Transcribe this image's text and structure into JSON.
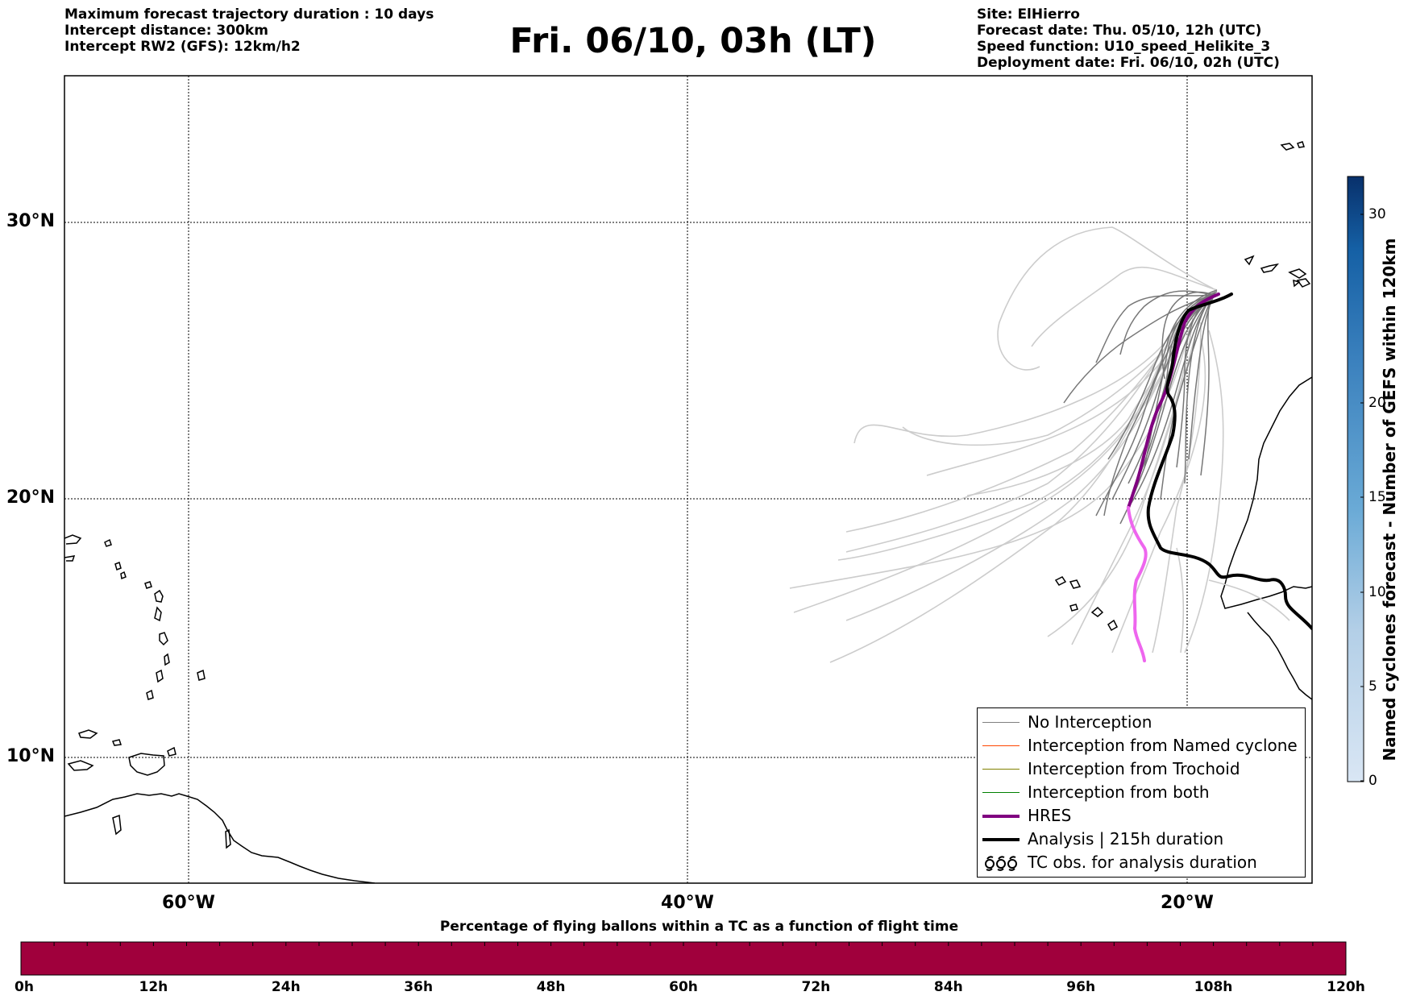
{
  "header": {
    "left_lines": [
      "Maximum forecast trajectory duration : 10 days",
      "Intercept distance: 300km",
      "Intercept RW2 (GFS):  12km/h2"
    ],
    "title": "Fri. 06/10, 03h (LT)",
    "right_lines": [
      "Site: ElHierro",
      "Forecast date: Thu. 05/10, 12h (UTC)",
      "Speed function: U10_speed_Helikite_3",
      "Deployment date: Fri. 06/10, 02h (UTC)"
    ]
  },
  "map": {
    "lat_labels": [
      "30°N",
      "20°N",
      "10°N"
    ],
    "lon_labels": [
      "60°W",
      "40°W",
      "20°W"
    ],
    "colors": {
      "no_interception": "#808080",
      "ensemble_light": "#cccccc",
      "named_cyclone": "#ff4500",
      "trochoid": "#808000",
      "both": "#008000",
      "hres": "#800080",
      "hres_tail": "#ee66ee",
      "analysis": "#000000"
    }
  },
  "legend": {
    "items": [
      {
        "label": "No Interception",
        "swatch": "line-gray"
      },
      {
        "label": "Interception from Named cyclone",
        "swatch": "line-orange"
      },
      {
        "label": "Interception from Trochoid",
        "swatch": "line-olive"
      },
      {
        "label": "Interception from both",
        "swatch": "line-green"
      },
      {
        "label": "HRES",
        "swatch": "line-purple"
      },
      {
        "label": "Analysis | 215h duration",
        "swatch": "line-black"
      },
      {
        "label": "TC obs. for analysis duration",
        "swatch": "cyclone-symbols-icon"
      }
    ]
  },
  "vertical_colorbar": {
    "title": "Named cyclones forecast - Number of GEFS within 120km",
    "tick_labels": [
      "30",
      "20",
      "15",
      "10",
      "5",
      "0"
    ]
  },
  "horizontal_bar": {
    "title": "Percentage of flying ballons within a TC as a function of flight time",
    "tick_labels": [
      "0h",
      "12h",
      "24h",
      "36h",
      "48h",
      "60h",
      "72h",
      "84h",
      "96h",
      "108h",
      "120h"
    ],
    "fill_color": "#a0003c"
  }
}
